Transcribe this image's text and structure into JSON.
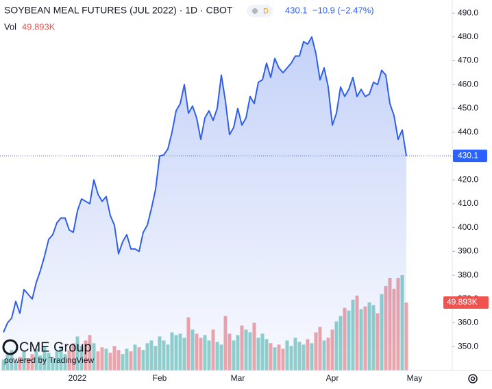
{
  "chart_data": {
    "type": "area",
    "title": "SOYBEAN MEAL FUTURES (JUL 2022) · 1D · CBOT",
    "badge": "D",
    "change": "−10.9 (−2.47%)",
    "logo": "CME Group",
    "powered_by": "powered by TradingView",
    "color": "#2f5fe8",
    "up_color": "#92d2cb",
    "down_color": "#f1a7aa",
    "ylim": [
      340,
      495.5
    ],
    "yticks": [
      {
        "value": 350,
        "label": "350.0"
      },
      {
        "value": 360,
        "label": "360.0"
      },
      {
        "value": 370,
        "label": "370.0"
      },
      {
        "value": 380,
        "label": "380.0"
      },
      {
        "value": 390,
        "label": "390.0"
      },
      {
        "value": 400,
        "label": "400.0"
      },
      {
        "value": 410,
        "label": "410.0"
      },
      {
        "value": 420,
        "label": "420.0"
      },
      {
        "value": 430,
        "label": "430.0"
      },
      {
        "value": 440,
        "label": "440.0"
      },
      {
        "value": 450,
        "label": "450.0"
      },
      {
        "value": 460,
        "label": "460.0"
      },
      {
        "value": 470,
        "label": "470.0"
      },
      {
        "value": 480,
        "label": "480.0"
      },
      {
        "value": 490,
        "label": "490.0"
      }
    ],
    "categories": [
      null,
      null,
      null,
      null,
      null,
      null,
      null,
      null,
      null,
      null,
      null,
      null,
      null,
      null,
      null,
      null,
      null,
      null,
      "2022",
      null,
      null,
      null,
      null,
      null,
      null,
      null,
      null,
      null,
      null,
      null,
      null,
      null,
      null,
      null,
      null,
      null,
      null,
      null,
      "Feb",
      null,
      null,
      null,
      null,
      null,
      null,
      null,
      null,
      null,
      null,
      null,
      null,
      null,
      null,
      null,
      null,
      null,
      null,
      "Mar",
      null,
      null,
      null,
      null,
      null,
      null,
      null,
      null,
      null,
      null,
      null,
      null,
      null,
      null,
      null,
      null,
      null,
      null,
      null,
      null,
      null,
      null,
      "Apr",
      null,
      null,
      null,
      null,
      null,
      null,
      null,
      null,
      null,
      null,
      null,
      null,
      null,
      null,
      null,
      null,
      null,
      null,
      null,
      "May"
    ],
    "values": [
      356,
      360,
      362,
      369,
      364,
      374,
      372,
      370,
      377,
      382,
      388,
      395,
      397,
      402,
      404,
      404,
      399,
      398,
      407,
      412,
      411,
      410,
      420,
      414,
      411,
      413,
      405,
      401,
      389,
      394,
      397,
      391,
      391,
      390,
      398,
      401,
      408,
      416,
      430,
      430.5,
      433,
      440,
      449,
      452,
      460,
      448,
      451,
      446,
      437,
      446,
      449,
      445,
      450,
      464,
      453,
      439,
      442,
      450,
      443,
      446,
      455,
      452,
      461,
      462,
      469,
      463,
      471,
      467,
      465,
      467,
      469,
      472,
      472,
      478,
      477,
      480,
      473,
      462,
      467,
      459,
      443,
      448,
      459,
      455,
      458,
      463,
      455,
      458,
      455,
      456,
      461,
      460,
      466,
      464,
      452,
      447,
      437,
      441,
      430.1,
      null,
      null
    ],
    "volume": {
      "name": "Vol",
      "lim": [
        0,
        272000
      ],
      "values": [
        8000,
        12000,
        15000,
        6000,
        10000,
        14000,
        9000,
        12000,
        16000,
        11000,
        18000,
        13000,
        9000,
        14000,
        17000,
        12000,
        15000,
        20000,
        25000,
        18000,
        22000,
        26000,
        20000,
        14000,
        17000,
        16000,
        13000,
        18000,
        15000,
        12000,
        16000,
        14000,
        19000,
        17000,
        15000,
        20000,
        22000,
        18000,
        25000,
        22000,
        19000,
        28000,
        26000,
        27000,
        24000,
        39000,
        30000,
        27000,
        24000,
        26000,
        22000,
        30000,
        21000,
        19000,
        40000,
        27000,
        22000,
        26000,
        33000,
        30000,
        28000,
        35000,
        24000,
        27000,
        23000,
        20000,
        17000,
        19000,
        16000,
        22000,
        18000,
        24000,
        21000,
        19000,
        23000,
        20000,
        28000,
        32000,
        22000,
        24000,
        30000,
        36000,
        40000,
        46000,
        44000,
        52000,
        55000,
        45000,
        47000,
        50000,
        48000,
        42000,
        56000,
        62000,
        68000,
        60000,
        68000,
        70000,
        49893,
        null,
        null
      ],
      "value_labels": [
        null,
        null,
        null,
        null,
        null,
        null,
        null,
        null,
        null,
        null,
        null,
        null,
        null,
        null,
        null,
        null,
        null,
        null,
        null,
        null,
        null,
        null,
        null,
        null,
        null,
        null,
        null,
        null,
        null,
        null,
        null,
        null,
        null,
        null,
        null,
        null,
        null,
        null,
        null,
        null,
        null,
        null,
        null,
        null,
        null,
        null,
        null,
        null,
        null,
        null,
        null,
        null,
        null,
        null,
        null,
        null,
        null,
        null,
        null,
        null,
        null,
        null,
        null,
        null,
        null,
        null,
        null,
        null,
        null,
        null,
        null,
        null,
        null,
        null,
        null,
        null,
        null,
        null,
        null,
        null,
        null,
        null,
        null,
        null,
        null,
        null,
        null,
        null,
        null,
        null,
        null,
        null,
        null,
        null,
        null,
        null,
        null,
        null,
        "49.893K",
        null,
        null
      ]
    }
  }
}
